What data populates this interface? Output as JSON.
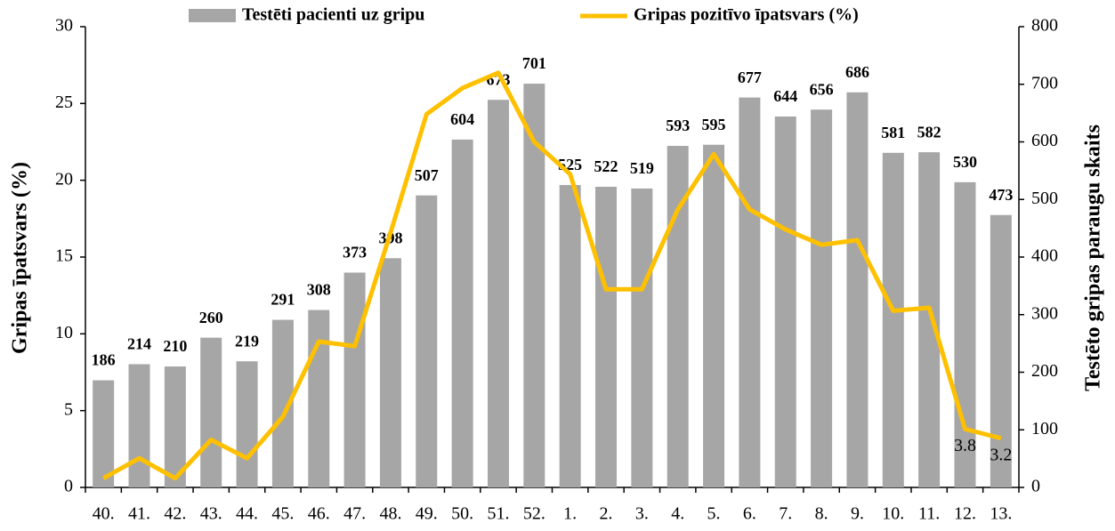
{
  "chart_data": {
    "type": "bar-line",
    "y_label": "Gripas īpatsvars (%)",
    "y2_label": "Testēto gripas paraugu skaits",
    "categories": [
      "40.",
      "41.",
      "42.",
      "43.",
      "44.",
      "45.",
      "46.",
      "47.",
      "48.",
      "49.",
      "50.",
      "51.",
      "52.",
      "1.",
      "2.",
      "3.",
      "4.",
      "5.",
      "6.",
      "7.",
      "8.",
      "9.",
      "10.",
      "11.",
      "12.",
      "13."
    ],
    "series": [
      {
        "name": "Testēti pacienti uz gripu",
        "type": "bar",
        "axis": "y2",
        "color": "#a6a6a6",
        "values": [
          186,
          214,
          210,
          260,
          219,
          291,
          308,
          373,
          398,
          507,
          604,
          673,
          701,
          525,
          522,
          519,
          593,
          595,
          677,
          644,
          656,
          686,
          581,
          582,
          530,
          473
        ]
      },
      {
        "name": "Gripas pozitīvo īpatsvars (%)",
        "type": "line",
        "axis": "y",
        "color": "#ffc000",
        "values": [
          0.6,
          1.9,
          0.6,
          3.1,
          1.9,
          4.6,
          9.5,
          9.2,
          16.6,
          24.3,
          26.0,
          27.0,
          22.5,
          20.4,
          12.9,
          12.9,
          18.1,
          21.7,
          18.1,
          16.8,
          15.8,
          16.1,
          11.5,
          11.7,
          3.8,
          3.2
        ],
        "value_labels": [
          null,
          null,
          null,
          null,
          null,
          null,
          null,
          null,
          null,
          null,
          null,
          null,
          null,
          null,
          null,
          null,
          null,
          null,
          null,
          null,
          null,
          null,
          null,
          null,
          "3.8",
          "3.2"
        ]
      }
    ],
    "ylim": [
      0,
      30
    ],
    "yticks": [
      0,
      5,
      10,
      15,
      20,
      25,
      30
    ],
    "y2lim": [
      0,
      800
    ],
    "y2ticks": [
      0,
      100,
      200,
      300,
      400,
      500,
      600,
      700,
      800
    ],
    "grid": false
  }
}
